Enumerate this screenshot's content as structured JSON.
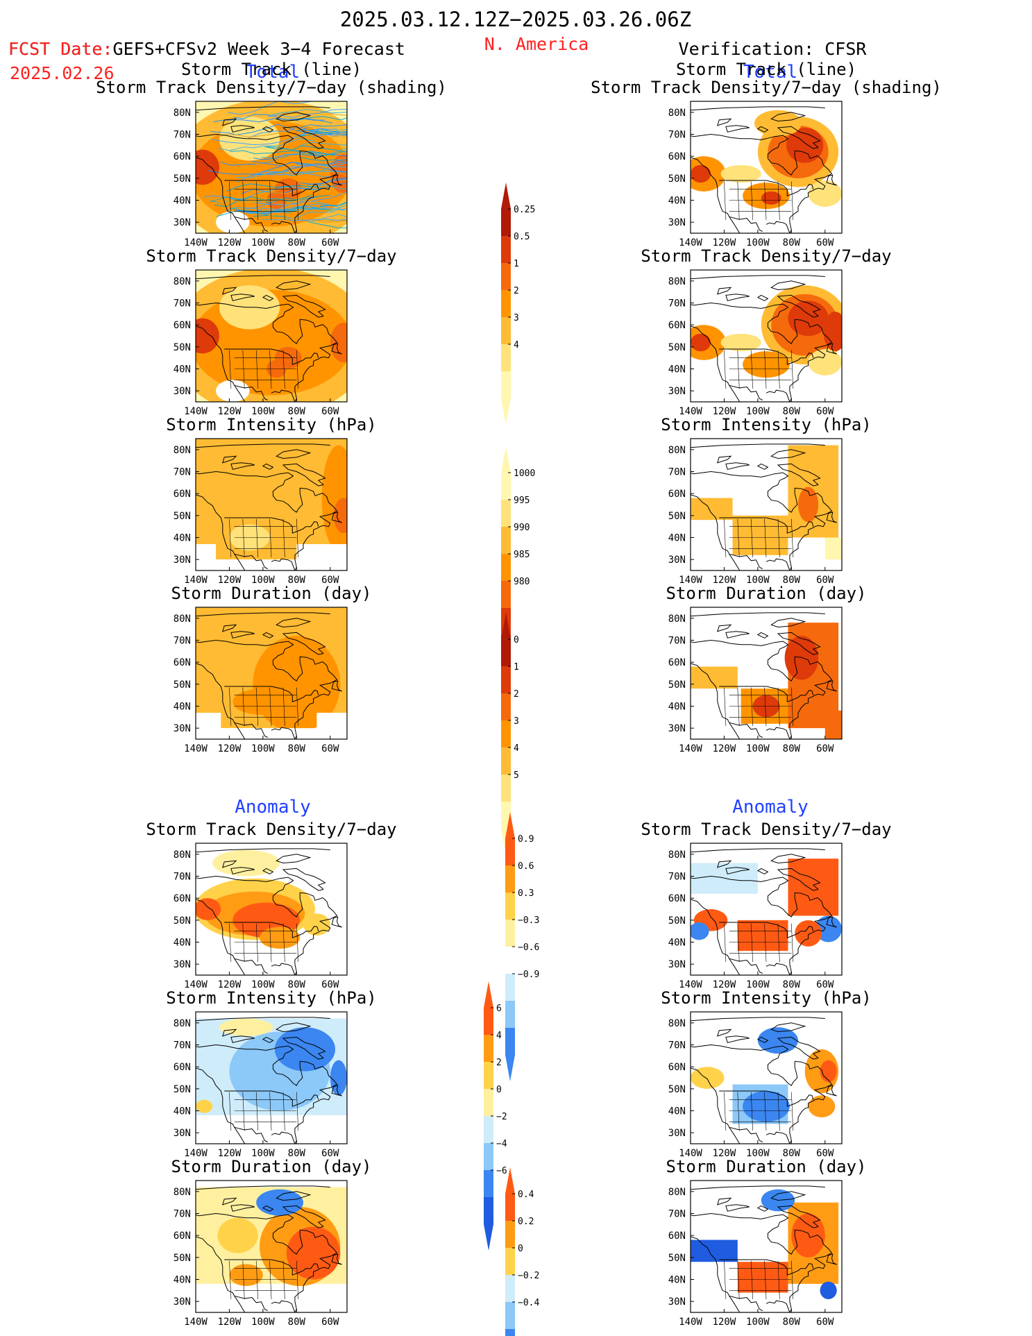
{
  "header": {
    "period": "2025.03.12.12Z−2025.03.26.06Z",
    "fcst_line1": "FCST Date:GEFS+CFSv2 Week 3−4 Forecast",
    "fcst_line2": "2025.02.26",
    "region": "N. America",
    "verification": "Verification: CFSR",
    "total_left": "Total",
    "total_right": "Total",
    "anomaly_left": "Anomaly",
    "anomaly_right": "Anomaly"
  },
  "panel_titles": {
    "track_line": "Storm Track (line)",
    "track_shading": "Storm Track Density/7−day (shading)",
    "density": "Storm Track Density/7−day",
    "intensity": "Storm Intensity (hPa)",
    "duration": "Storm Duration (day)"
  },
  "axes": {
    "lat_ticks": [
      "80N",
      "70N",
      "60N",
      "50N",
      "40N",
      "30N"
    ],
    "lon_ticks": [
      "140W",
      "120W",
      "100W",
      "80W",
      "60W"
    ]
  },
  "colors": {
    "title_red": "#ff2020",
    "total_blue": "#2040ff",
    "warm_scale": [
      "#fff7b0",
      "#ffe27a",
      "#ffbb33",
      "#ff9400",
      "#f56a0c",
      "#de3a0a",
      "#b01a06"
    ],
    "anom_scale": [
      "#1f5ce0",
      "#3b86f0",
      "#8cc8f8",
      "#cfecfb",
      "#ffffff",
      "#fff0a0",
      "#ffd24a",
      "#ff9c14",
      "#ff5a14"
    ]
  },
  "chart_data": [
    {
      "type": "colorbar",
      "name": "storm-track-density-total-colorbar",
      "labels": [
        "0.25",
        "0.5",
        "1",
        "2",
        "3",
        "4"
      ]
    },
    {
      "type": "colorbar",
      "name": "storm-intensity-total-colorbar",
      "labels": [
        "1000",
        "995",
        "990",
        "985",
        "980"
      ]
    },
    {
      "type": "colorbar",
      "name": "storm-duration-total-colorbar",
      "labels": [
        "0",
        "1",
        "2",
        "3",
        "4",
        "5"
      ]
    },
    {
      "type": "colorbar",
      "name": "storm-track-density-anomaly-colorbar",
      "labels": [
        "0.9",
        "0.6",
        "0.3",
        "−0.3",
        "−0.6",
        "−0.9"
      ]
    },
    {
      "type": "colorbar",
      "name": "storm-intensity-anomaly-colorbar",
      "labels": [
        "6",
        "4",
        "2",
        "0",
        "−2",
        "−4",
        "−6"
      ]
    },
    {
      "type": "colorbar",
      "name": "storm-duration-anomaly-colorbar",
      "labels": [
        "0.4",
        "0.2",
        "0",
        "−0.2",
        "−0.4"
      ]
    }
  ]
}
